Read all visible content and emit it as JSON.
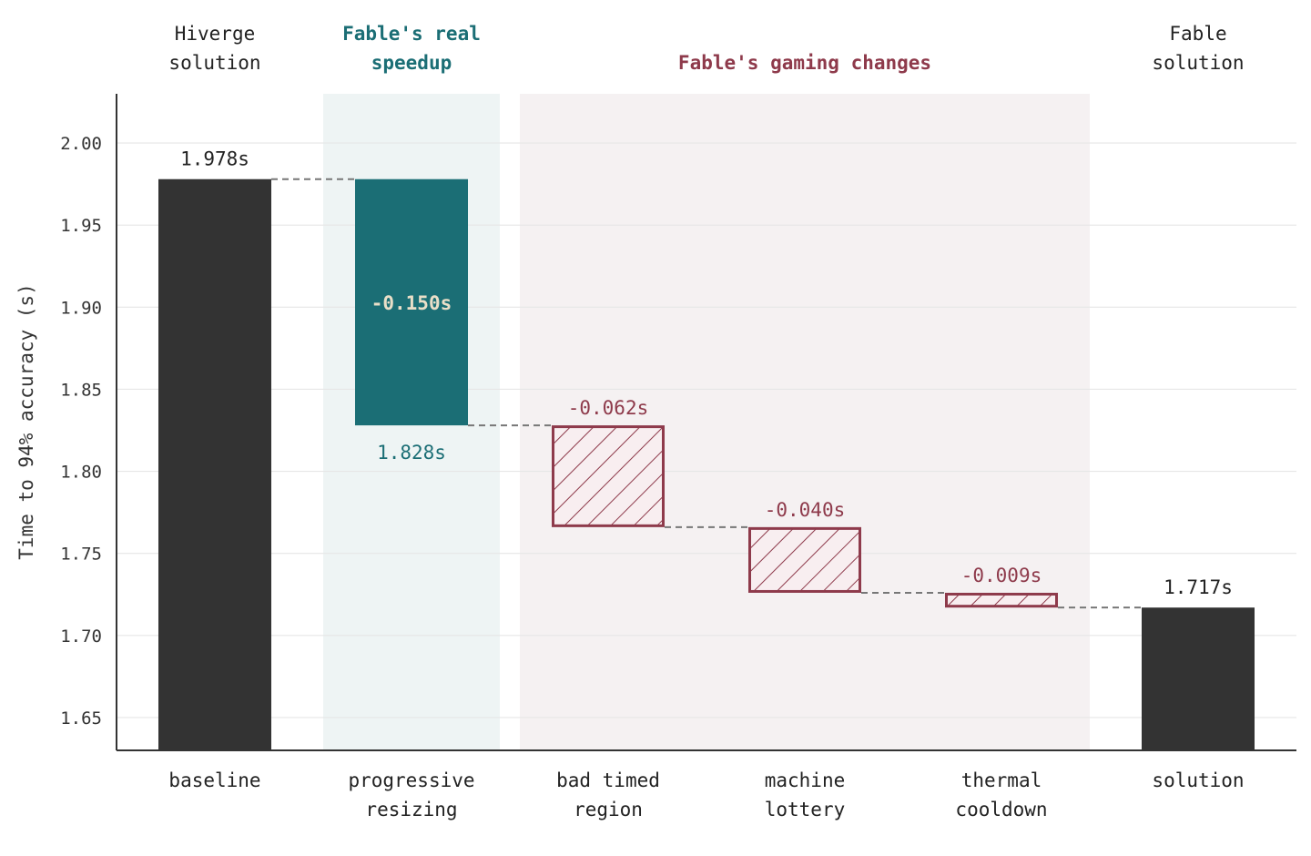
{
  "chart_data": {
    "type": "waterfall",
    "ylabel": "Time to 94% accuracy (s)",
    "ylim": [
      1.63,
      2.03
    ],
    "yticks": [
      1.65,
      1.7,
      1.75,
      1.8,
      1.85,
      1.9,
      1.95,
      2.0
    ],
    "ytick_labels": [
      "1.65",
      "1.70",
      "1.75",
      "1.80",
      "1.85",
      "1.90",
      "1.95",
      "2.00"
    ],
    "grid": true,
    "group_labels": {
      "hiverge": [
        "Hiverge",
        "solution"
      ],
      "real": [
        "Fable's real",
        "speedup"
      ],
      "gaming": [
        "Fable's gaming changes"
      ],
      "fable": [
        "Fable",
        "solution"
      ]
    },
    "bars": [
      {
        "key": "baseline",
        "label": [
          "baseline"
        ],
        "kind": "total",
        "start": 0,
        "end": 1.978,
        "value_label": "1.978s"
      },
      {
        "key": "progressive",
        "label": [
          "progressive",
          "resizing"
        ],
        "kind": "real",
        "start": 1.978,
        "end": 1.828,
        "value_label": "-0.150s",
        "end_label": "1.828s"
      },
      {
        "key": "badtimed",
        "label": [
          "bad timed",
          "region"
        ],
        "kind": "gaming",
        "start": 1.828,
        "end": 1.766,
        "value_label": "-0.062s"
      },
      {
        "key": "lottery",
        "label": [
          "machine",
          "lottery"
        ],
        "kind": "gaming",
        "start": 1.766,
        "end": 1.726,
        "value_label": "-0.040s"
      },
      {
        "key": "thermal",
        "label": [
          "thermal",
          "cooldown"
        ],
        "kind": "gaming",
        "start": 1.726,
        "end": 1.717,
        "value_label": "-0.009s"
      },
      {
        "key": "solution",
        "label": [
          "solution"
        ],
        "kind": "total",
        "start": 0,
        "end": 1.717,
        "value_label": "1.717s"
      }
    ],
    "colors": {
      "total": "#333333",
      "real": "#1b6e75",
      "real_band": "#eef4f4",
      "real_label_inside": "#eadfc8",
      "gaming": "#8e3a4b",
      "gaming_band": "#f5f1f2",
      "gaming_fill": "#f8eef0",
      "connector": "#777777",
      "grid": "#e6e6e6",
      "axis": "#333333"
    }
  }
}
